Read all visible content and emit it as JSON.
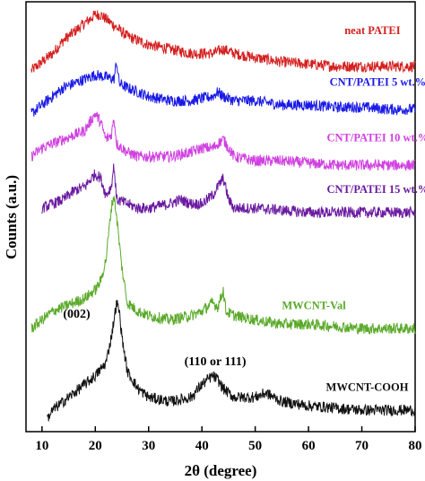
{
  "chart_data": {
    "type": "line",
    "xlabel": "2θ (degree)",
    "ylabel": "Counts (a.u.)",
    "xlim": [
      7,
      80
    ],
    "ylim": [
      0,
      100
    ],
    "x_ticks": [
      10,
      20,
      30,
      40,
      50,
      60,
      70,
      80
    ],
    "y_ticks_shown": false,
    "grid": false,
    "series": [
      {
        "name": "neat PATEI",
        "color": "#d42020",
        "points": [
          [
            8,
            84
          ],
          [
            10,
            86
          ],
          [
            12,
            88
          ],
          [
            14,
            91
          ],
          [
            16,
            93
          ],
          [
            18,
            95
          ],
          [
            20,
            97
          ],
          [
            21,
            97
          ],
          [
            22,
            96
          ],
          [
            24,
            94
          ],
          [
            26,
            92
          ],
          [
            28,
            91
          ],
          [
            30,
            90
          ],
          [
            34,
            89
          ],
          [
            38,
            88
          ],
          [
            42,
            88
          ],
          [
            44,
            89
          ],
          [
            46,
            88
          ],
          [
            50,
            87
          ],
          [
            55,
            86
          ],
          [
            60,
            85.5
          ],
          [
            65,
            85
          ],
          [
            70,
            85
          ],
          [
            75,
            85
          ],
          [
            80,
            85
          ]
        ]
      },
      {
        "name": "CNT/PATEI 5 wt.%",
        "color": "#1a1ae6",
        "points": [
          [
            8,
            74
          ],
          [
            10,
            76
          ],
          [
            12,
            78
          ],
          [
            14,
            80
          ],
          [
            16,
            81
          ],
          [
            18,
            82
          ],
          [
            20,
            83
          ],
          [
            22,
            82.5
          ],
          [
            23.5,
            82
          ],
          [
            24,
            86
          ],
          [
            24.5,
            81
          ],
          [
            26,
            80
          ],
          [
            28,
            79
          ],
          [
            30,
            78
          ],
          [
            34,
            77
          ],
          [
            38,
            77
          ],
          [
            42,
            78
          ],
          [
            43,
            79
          ],
          [
            44,
            78
          ],
          [
            46,
            77
          ],
          [
            50,
            77
          ],
          [
            55,
            76
          ],
          [
            60,
            76
          ],
          [
            65,
            75.5
          ],
          [
            70,
            75.5
          ],
          [
            75,
            75
          ],
          [
            80,
            75
          ]
        ]
      },
      {
        "name": "CNT/PATEI 10 wt.%",
        "color": "#d040e0",
        "points": [
          [
            8,
            64
          ],
          [
            10,
            66
          ],
          [
            12,
            67
          ],
          [
            14,
            68
          ],
          [
            16,
            69
          ],
          [
            18,
            70
          ],
          [
            20,
            74
          ],
          [
            21,
            72
          ],
          [
            22,
            68
          ],
          [
            23,
            69
          ],
          [
            23.5,
            73
          ],
          [
            24,
            67
          ],
          [
            26,
            65
          ],
          [
            28,
            64
          ],
          [
            30,
            64
          ],
          [
            34,
            64
          ],
          [
            38,
            65
          ],
          [
            40,
            66
          ],
          [
            42,
            66
          ],
          [
            43,
            67
          ],
          [
            44,
            68
          ],
          [
            45,
            66
          ],
          [
            46,
            64
          ],
          [
            50,
            63
          ],
          [
            55,
            63
          ],
          [
            60,
            62.5
          ],
          [
            65,
            62
          ],
          [
            70,
            62
          ],
          [
            75,
            62
          ],
          [
            80,
            62
          ]
        ]
      },
      {
        "name": "CNT/PATEI 15 wt.%",
        "color": "#6a1aa0",
        "points": [
          [
            10,
            52
          ],
          [
            12,
            53
          ],
          [
            14,
            54
          ],
          [
            16,
            56
          ],
          [
            18,
            57
          ],
          [
            20,
            60
          ],
          [
            21,
            59
          ],
          [
            22,
            55
          ],
          [
            23,
            57
          ],
          [
            23.5,
            62
          ],
          [
            24,
            54
          ],
          [
            26,
            53
          ],
          [
            28,
            52
          ],
          [
            30,
            52
          ],
          [
            34,
            53
          ],
          [
            36,
            54
          ],
          [
            38,
            53
          ],
          [
            40,
            53
          ],
          [
            42,
            55
          ],
          [
            43,
            57
          ],
          [
            44,
            59
          ],
          [
            45,
            54
          ],
          [
            46,
            52
          ],
          [
            50,
            52
          ],
          [
            55,
            51.5
          ],
          [
            60,
            51
          ],
          [
            65,
            51
          ],
          [
            70,
            51
          ],
          [
            75,
            51
          ],
          [
            80,
            51
          ]
        ]
      },
      {
        "name": "MWCNT-Val",
        "color": "#5aaa2a",
        "points": [
          [
            8,
            24
          ],
          [
            10,
            26
          ],
          [
            12,
            28
          ],
          [
            14,
            29
          ],
          [
            16,
            30
          ],
          [
            18,
            31
          ],
          [
            20,
            33
          ],
          [
            21,
            35
          ],
          [
            22,
            40
          ],
          [
            23,
            52
          ],
          [
            23.5,
            55
          ],
          [
            24,
            50
          ],
          [
            25,
            38
          ],
          [
            26,
            30
          ],
          [
            28,
            28
          ],
          [
            30,
            27
          ],
          [
            34,
            26
          ],
          [
            38,
            27
          ],
          [
            40,
            28
          ],
          [
            42,
            30
          ],
          [
            43,
            29
          ],
          [
            44,
            33
          ],
          [
            44.5,
            28
          ],
          [
            46,
            27
          ],
          [
            50,
            26
          ],
          [
            55,
            25
          ],
          [
            60,
            25
          ],
          [
            65,
            24.5
          ],
          [
            70,
            24
          ],
          [
            75,
            24
          ],
          [
            80,
            24
          ]
        ]
      },
      {
        "name": "MWCNT-COOH",
        "color": "#111111",
        "points": [
          [
            11,
            3
          ],
          [
            12,
            5
          ],
          [
            14,
            7
          ],
          [
            16,
            9
          ],
          [
            18,
            11
          ],
          [
            20,
            13
          ],
          [
            22,
            16
          ],
          [
            23,
            22
          ],
          [
            24,
            30
          ],
          [
            24.5,
            28
          ],
          [
            25,
            22
          ],
          [
            26,
            14
          ],
          [
            28,
            10
          ],
          [
            30,
            8
          ],
          [
            34,
            7
          ],
          [
            38,
            8
          ],
          [
            40,
            11
          ],
          [
            42,
            13
          ],
          [
            43,
            12
          ],
          [
            44,
            10
          ],
          [
            46,
            8
          ],
          [
            50,
            8
          ],
          [
            52,
            9
          ],
          [
            55,
            7
          ],
          [
            60,
            6
          ],
          [
            65,
            5.5
          ],
          [
            70,
            5
          ],
          [
            75,
            5
          ],
          [
            80,
            5
          ]
        ]
      }
    ],
    "annotations": [
      {
        "text": "(002)",
        "x": 16.5,
        "y": 26.5
      },
      {
        "text": "(110 or 111)",
        "x": 42.5,
        "y": 15.5
      }
    ]
  }
}
